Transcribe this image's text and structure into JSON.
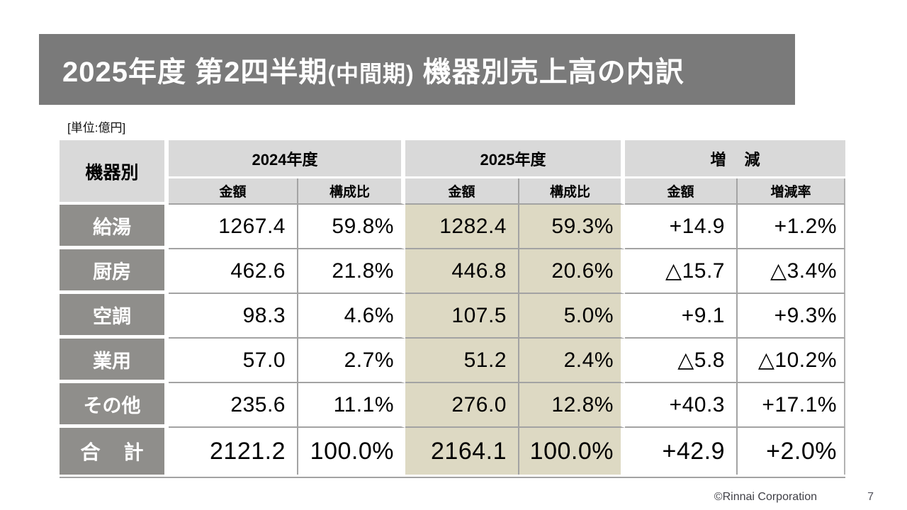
{
  "slide": {
    "title": {
      "part1": "2025年度 第2四半期",
      "part2": "(中間期)",
      "part3": "機器別売上高の内訳"
    },
    "unit_label": "[単位:億円]",
    "footer": {
      "copyright": "©Rinnai Corporation",
      "page_number": "7"
    }
  },
  "table": {
    "corner_header": "機器別",
    "col_groups": [
      {
        "label": "2024年度",
        "sub": [
          "金額",
          "構成比"
        ]
      },
      {
        "label": "2025年度",
        "sub": [
          "金額",
          "構成比"
        ]
      },
      {
        "label": "増 減",
        "sub": [
          "金額",
          "増減率"
        ]
      }
    ],
    "rows": [
      {
        "label": "給湯",
        "fy2024_amount": "1267.4",
        "fy2024_share": "59.8%",
        "fy2025_amount": "1282.4",
        "fy2025_share": "59.3%",
        "change_amount": "+14.9",
        "change_rate": "+1.2%"
      },
      {
        "label": "厨房",
        "fy2024_amount": "462.6",
        "fy2024_share": "21.8%",
        "fy2025_amount": "446.8",
        "fy2025_share": "20.6%",
        "change_amount": "△15.7",
        "change_rate": "△3.4%"
      },
      {
        "label": "空調",
        "fy2024_amount": "98.3",
        "fy2024_share": "4.6%",
        "fy2025_amount": "107.5",
        "fy2025_share": "5.0%",
        "change_amount": "+9.1",
        "change_rate": "+9.3%"
      },
      {
        "label": "業用",
        "fy2024_amount": "57.0",
        "fy2024_share": "2.7%",
        "fy2025_amount": "51.2",
        "fy2025_share": "2.4%",
        "change_amount": "△5.8",
        "change_rate": "△10.2%"
      },
      {
        "label": "その他",
        "fy2024_amount": "235.6",
        "fy2024_share": "11.1%",
        "fy2025_amount": "276.0",
        "fy2025_share": "12.8%",
        "change_amount": "+40.3",
        "change_rate": "+17.1%"
      }
    ],
    "total": {
      "label": "合 計",
      "fy2024_amount": "2121.2",
      "fy2024_share": "100.0%",
      "fy2025_amount": "2164.1",
      "fy2025_share": "100.0%",
      "change_amount": "+42.9",
      "change_rate": "+2.0%"
    }
  },
  "colors": {
    "title_bar": "#7a7a7a",
    "header_cell": "#d9d9d9",
    "row_label": "#8f8e8b",
    "fy2025_highlight": "#ddd9c3",
    "grid_line": "#a3a3a3"
  }
}
